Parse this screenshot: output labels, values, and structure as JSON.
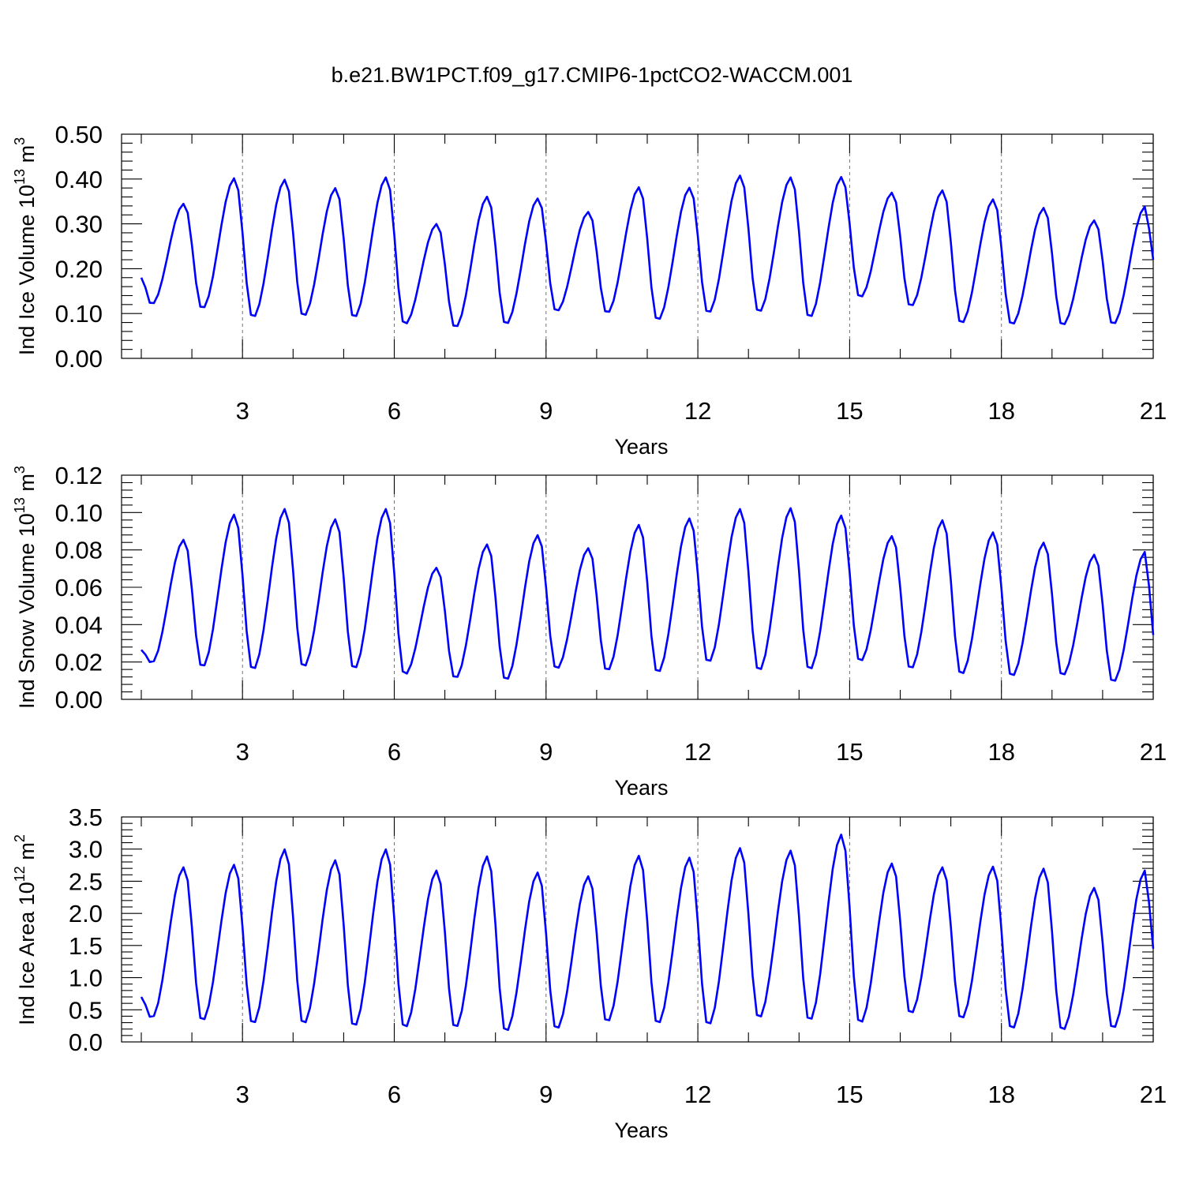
{
  "title": "b.e21.BW1PCT.f09_g17.CMIP6-1pctCO2-WACCM.001",
  "series_color": "#0000ff",
  "chart_data": [
    {
      "type": "line",
      "xlabel": "Years",
      "ylabel": {
        "prefix": "Ind Ice Volume 10",
        "sup": "13",
        "mid": " m",
        "sup2": "3"
      },
      "xlim": [
        1,
        21
      ],
      "xticks": [
        3,
        6,
        9,
        12,
        15,
        18,
        21
      ],
      "ylim": [
        0,
        0.5
      ],
      "yticks": [
        "0.00",
        "0.10",
        "0.20",
        "0.30",
        "0.40",
        "0.50"
      ],
      "grid": "dashed vertical at x ticks",
      "peaks": [
        0.345,
        0.402,
        0.399,
        0.38,
        0.404,
        0.3,
        0.361,
        0.357,
        0.327,
        0.382,
        0.381,
        0.408,
        0.404,
        0.405,
        0.37,
        0.375,
        0.355,
        0.336,
        0.308,
        0.339
      ],
      "troughs": [
        0.12,
        0.11,
        0.09,
        0.093,
        0.09,
        0.075,
        0.068,
        0.075,
        0.104,
        0.1,
        0.084,
        0.1,
        0.102,
        0.09,
        0.135,
        0.115,
        0.077,
        0.074,
        0.073,
        0.075
      ],
      "start": 0.18,
      "end": 0.22
    },
    {
      "type": "line",
      "xlabel": "Years",
      "ylabel": {
        "prefix": "Ind Snow Volume 10",
        "sup": "13",
        "mid": " m",
        "sup2": "3"
      },
      "xlim": [
        1,
        21
      ],
      "xticks": [
        3,
        6,
        9,
        12,
        15,
        18,
        21
      ],
      "ylim": [
        0,
        0.12
      ],
      "yticks": [
        "0.00",
        "0.02",
        "0.04",
        "0.06",
        "0.08",
        "0.10",
        "0.12"
      ],
      "grid": "dashed vertical at x ticks",
      "peaks": [
        0.0855,
        0.099,
        0.102,
        0.0965,
        0.102,
        0.0705,
        0.083,
        0.088,
        0.081,
        0.0935,
        0.097,
        0.102,
        0.1025,
        0.0985,
        0.0875,
        0.096,
        0.0895,
        0.084,
        0.0775,
        0.079
      ],
      "troughs": [
        0.0195,
        0.017,
        0.0155,
        0.017,
        0.016,
        0.013,
        0.011,
        0.01,
        0.016,
        0.015,
        0.014,
        0.0195,
        0.015,
        0.0155,
        0.02,
        0.016,
        0.013,
        0.012,
        0.0125,
        0.009
      ],
      "start": 0.0265,
      "end": 0.0345
    },
    {
      "type": "line",
      "xlabel": "Years",
      "ylabel": {
        "prefix": "Ind Ice Area 10",
        "sup": "12",
        "mid": " m",
        "sup2": "2"
      },
      "xlim": [
        1,
        21
      ],
      "xticks": [
        3,
        6,
        9,
        12,
        15,
        18,
        21
      ],
      "ylim": [
        0,
        3.5
      ],
      "yticks": [
        "0.0",
        "0.5",
        "1.0",
        "1.5",
        "2.0",
        "2.5",
        "3.0",
        "3.5"
      ],
      "grid": "dashed vertical at x ticks",
      "peaks": [
        2.72,
        2.76,
        3.0,
        2.83,
        3.0,
        2.67,
        2.89,
        2.64,
        2.58,
        2.9,
        2.87,
        3.02,
        2.98,
        3.23,
        2.78,
        2.72,
        2.73,
        2.7,
        2.4,
        2.67
      ],
      "troughs": [
        0.37,
        0.32,
        0.27,
        0.27,
        0.23,
        0.21,
        0.21,
        0.15,
        0.19,
        0.3,
        0.27,
        0.25,
        0.36,
        0.32,
        0.28,
        0.43,
        0.35,
        0.19,
        0.17,
        0.2
      ],
      "start": 0.7,
      "end": 1.45
    }
  ]
}
